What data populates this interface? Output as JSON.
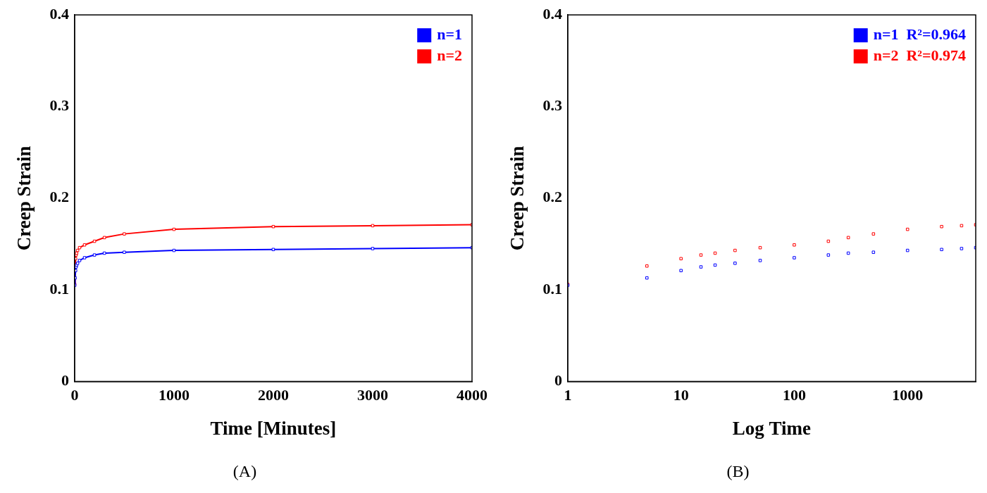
{
  "chart_data": [
    {
      "type": "scatter",
      "title": "(A)",
      "x_label": "Time [Minutes]",
      "y_label": "Creep Strain",
      "x": [
        1,
        5,
        10,
        15,
        20,
        30,
        50,
        100,
        200,
        300,
        500,
        1000,
        2000,
        3000,
        4000
      ],
      "series": [
        {
          "name": "n=1",
          "color": "#0000ff",
          "values": [
            0.105,
            0.113,
            0.121,
            0.125,
            0.127,
            0.129,
            0.132,
            0.135,
            0.138,
            0.14,
            0.141,
            0.143,
            0.144,
            0.145,
            0.146
          ]
        },
        {
          "name": "n=2",
          "color": "#ff0000",
          "values": [
            0.106,
            0.126,
            0.134,
            0.138,
            0.14,
            0.143,
            0.146,
            0.149,
            0.153,
            0.157,
            0.161,
            0.166,
            0.169,
            0.17,
            0.171
          ]
        }
      ],
      "xlim": [
        0,
        4000
      ],
      "xticks": [
        0,
        1000,
        2000,
        3000,
        4000
      ],
      "ylim": [
        0,
        0.4
      ],
      "yticks": [
        0,
        0.1,
        0.2,
        0.3,
        0.4
      ],
      "grid": false,
      "legend": "upper right",
      "marker": "square",
      "line_style": "solid"
    },
    {
      "type": "scatter",
      "title": "(B)",
      "x_label": "Log Time",
      "y_label": "Creep Strain",
      "x": [
        1,
        5,
        10,
        15,
        20,
        30,
        50,
        100,
        200,
        300,
        500,
        1000,
        2000,
        3000,
        4000
      ],
      "series": [
        {
          "name": "n=1  R²=0.964",
          "color": "#0000ff",
          "values": [
            0.105,
            0.113,
            0.121,
            0.125,
            0.127,
            0.129,
            0.132,
            0.135,
            0.138,
            0.14,
            0.141,
            0.143,
            0.144,
            0.145,
            0.146
          ]
        },
        {
          "name": "n=2  R²=0.974",
          "color": "#ff0000",
          "values": [
            0.106,
            0.126,
            0.134,
            0.138,
            0.14,
            0.143,
            0.146,
            0.149,
            0.153,
            0.157,
            0.161,
            0.166,
            0.169,
            0.17,
            0.171
          ]
        }
      ],
      "xlim": [
        1,
        4000
      ],
      "xticks": [
        1,
        10,
        100,
        1000
      ],
      "ylim": [
        0,
        0.4
      ],
      "yticks": [
        0,
        0.1,
        0.2,
        0.3,
        0.4
      ],
      "log": "x",
      "grid": false,
      "legend": "upper right",
      "marker": "square",
      "line_style": "none"
    }
  ]
}
